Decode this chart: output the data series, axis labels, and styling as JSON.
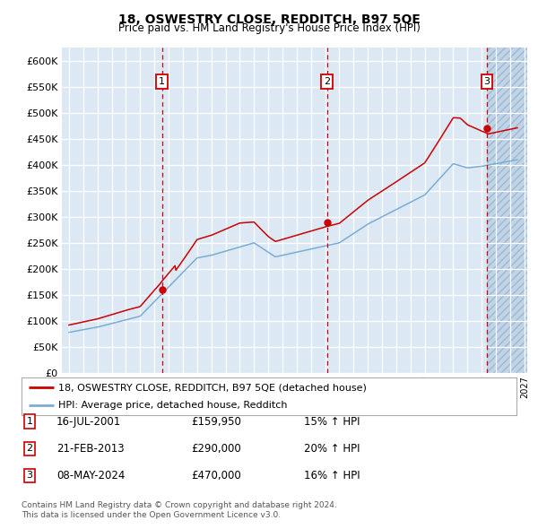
{
  "title1": "18, OSWESTRY CLOSE, REDDITCH, B97 5QE",
  "title2": "Price paid vs. HM Land Registry's House Price Index (HPI)",
  "legend_line1": "18, OSWESTRY CLOSE, REDDITCH, B97 5QE (detached house)",
  "legend_line2": "HPI: Average price, detached house, Redditch",
  "footer1": "Contains HM Land Registry data © Crown copyright and database right 2024.",
  "footer2": "This data is licensed under the Open Government Licence v3.0.",
  "transactions": [
    {
      "num": 1,
      "date": "16-JUL-2001",
      "price": 159950,
      "pct": "15%",
      "dir": "↑"
    },
    {
      "num": 2,
      "date": "21-FEB-2013",
      "price": 290000,
      "pct": "20%",
      "dir": "↑"
    },
    {
      "num": 3,
      "date": "08-MAY-2024",
      "price": 470000,
      "pct": "16%",
      "dir": "↑"
    }
  ],
  "sale_years": [
    2001.54,
    2013.13,
    2024.36
  ],
  "sale_prices": [
    159950,
    290000,
    470000
  ],
  "ylim": [
    0,
    625000
  ],
  "yticks": [
    0,
    50000,
    100000,
    150000,
    200000,
    250000,
    300000,
    350000,
    400000,
    450000,
    500000,
    550000,
    600000
  ],
  "xlim_start": 1994.5,
  "xlim_end": 2027.2,
  "background_color": "#dce9f5",
  "red_line_color": "#cc0000",
  "blue_line_color": "#7aadd4",
  "grid_color": "#ffffff",
  "marker_color": "#cc0000",
  "dashed_line_color": "#cc0000"
}
